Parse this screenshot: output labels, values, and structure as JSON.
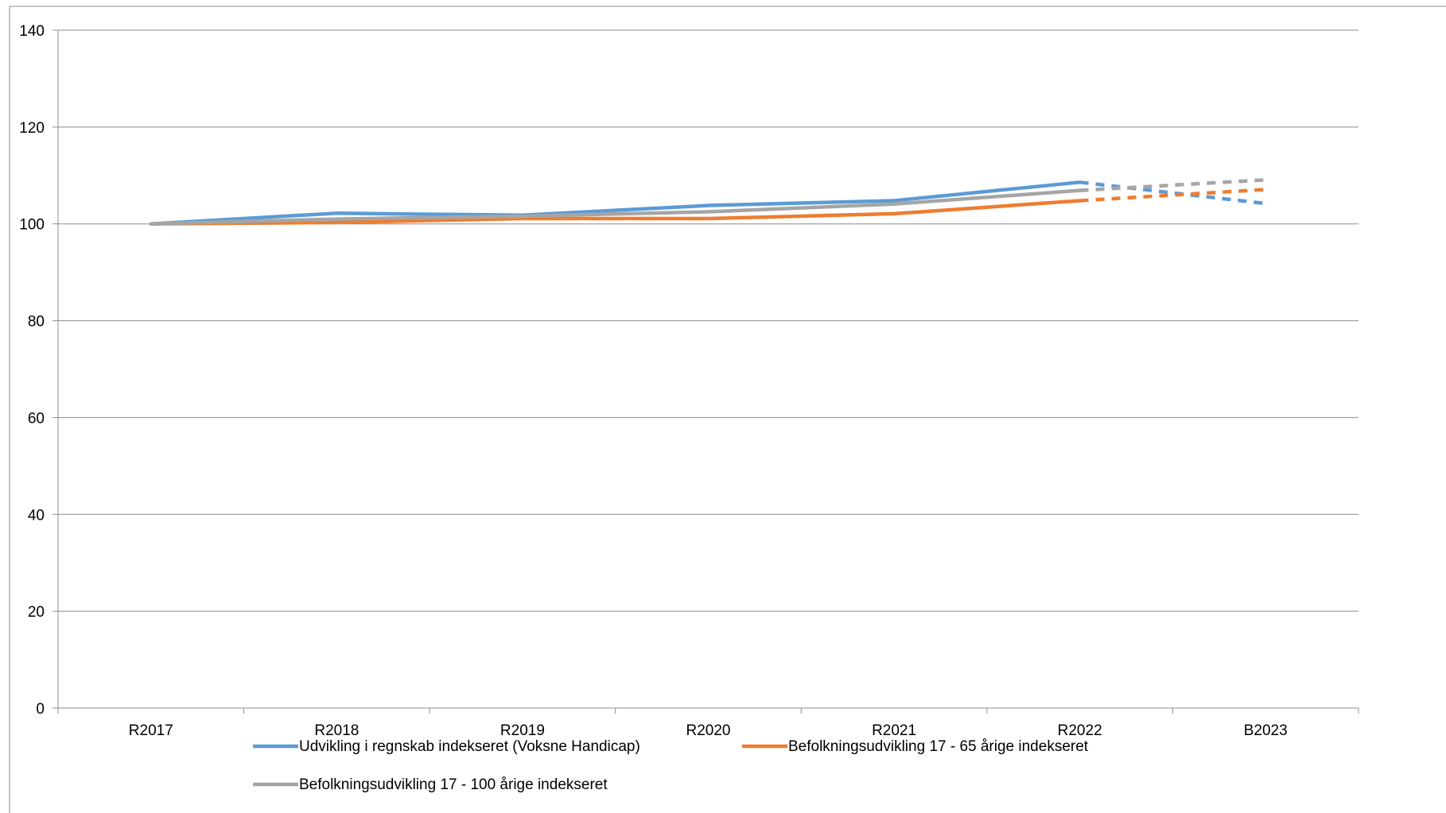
{
  "chart_data": {
    "type": "line",
    "title": "",
    "xlabel": "",
    "ylabel": "",
    "categories": [
      "R2017",
      "R2018",
      "R2019",
      "R2020",
      "R2021",
      "R2022",
      "B2023"
    ],
    "ylim": [
      0,
      140
    ],
    "yticks": [
      "0",
      "20",
      "40",
      "60",
      "80",
      "100",
      "120",
      "140"
    ],
    "grid": true,
    "legend_position": "bottom",
    "dashed_segment": "R2022 to B2023",
    "series": [
      {
        "name": "Udvikling i regnskab indekseret (Voksne Handicap)",
        "color": "#5B9BD5",
        "values": [
          100,
          102.2,
          101.8,
          103.8,
          104.8,
          108.6,
          104.2
        ]
      },
      {
        "name": "Befolkningsudvikling 17 - 65 årige indekseret",
        "color": "#ED7D31",
        "values": [
          100,
          100.3,
          101.1,
          101.1,
          102.1,
          104.8,
          107.1
        ]
      },
      {
        "name": "Befolkningsudvikling 17 - 100 årige indekseret",
        "color": "#A5A5A5",
        "values": [
          100,
          101.0,
          101.6,
          102.5,
          104.1,
          106.9,
          109.1
        ]
      }
    ]
  }
}
